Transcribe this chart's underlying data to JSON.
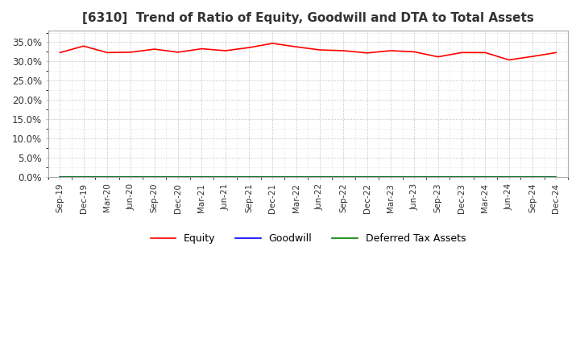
{
  "title": "[6310]  Trend of Ratio of Equity, Goodwill and DTA to Total Assets",
  "title_fontsize": 11,
  "background_color": "#ffffff",
  "plot_bg_color": "#ffffff",
  "grid_color": "#999999",
  "x_labels": [
    "Sep-19",
    "Dec-19",
    "Mar-20",
    "Jun-20",
    "Sep-20",
    "Dec-20",
    "Mar-21",
    "Jun-21",
    "Sep-21",
    "Dec-21",
    "Mar-22",
    "Jun-22",
    "Sep-22",
    "Dec-22",
    "Mar-23",
    "Jun-23",
    "Sep-23",
    "Dec-23",
    "Mar-24",
    "Jun-24",
    "Sep-24",
    "Dec-24"
  ],
  "equity": [
    0.323,
    0.34,
    0.323,
    0.324,
    0.332,
    0.324,
    0.333,
    0.328,
    0.336,
    0.347,
    0.338,
    0.33,
    0.328,
    0.322,
    0.328,
    0.325,
    0.312,
    0.323,
    0.323,
    0.304,
    0.313,
    0.323
  ],
  "goodwill": [
    0.0,
    0.0,
    0.0,
    0.0,
    0.0,
    0.0,
    0.0,
    0.0,
    0.0,
    0.0,
    0.0,
    0.0,
    0.0,
    0.0,
    0.0,
    0.0,
    0.0,
    0.0,
    0.0,
    0.0,
    0.0,
    0.0
  ],
  "dta": [
    0.0,
    0.0,
    0.0,
    0.0,
    0.0,
    0.0,
    0.0,
    0.0,
    0.0,
    0.0,
    0.0,
    0.0,
    0.0,
    0.0,
    0.0,
    0.0,
    0.0,
    0.0,
    0.0,
    0.0,
    0.0,
    0.0
  ],
  "equity_color": "#ff0000",
  "goodwill_color": "#0000ff",
  "dta_color": "#008000",
  "ylim": [
    0.0,
    0.38
  ],
  "yticks": [
    0.0,
    0.05,
    0.1,
    0.15,
    0.2,
    0.25,
    0.3,
    0.35
  ],
  "legend_labels": [
    "Equity",
    "Goodwill",
    "Deferred Tax Assets"
  ],
  "spine_color": "#aaaaaa"
}
